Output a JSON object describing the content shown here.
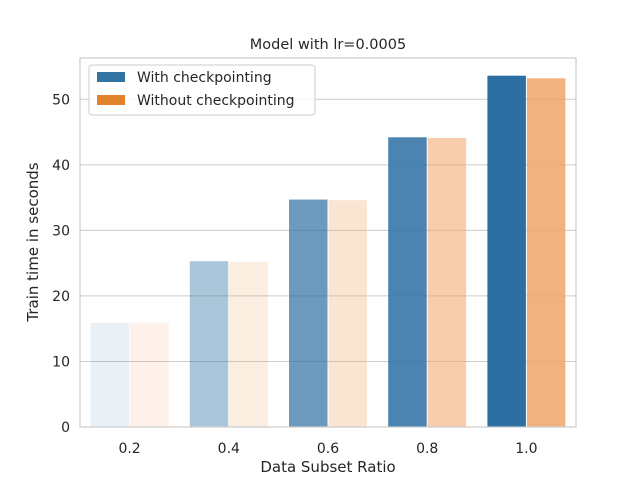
{
  "chart_data": {
    "type": "bar",
    "title": "Model with lr=0.0005",
    "xlabel": "Data Subset Ratio",
    "ylabel": "Train time in seconds",
    "categories": [
      "0.2",
      "0.4",
      "0.6",
      "0.8",
      "1.0"
    ],
    "ylim": [
      0,
      56.3
    ],
    "yticks": [
      0,
      10,
      20,
      30,
      40,
      50
    ],
    "grid": true,
    "legend_position": "top-left",
    "series": [
      {
        "name": "With checkpointing",
        "color": "#2c6fa3",
        "values": [
          15.9,
          25.3,
          34.7,
          44.2,
          53.6
        ],
        "opacities": [
          0.1,
          0.4,
          0.7,
          0.85,
          1.0
        ]
      },
      {
        "name": "Without checkpointing",
        "color": "#f0a46a",
        "values": [
          15.9,
          25.2,
          34.6,
          44.1,
          53.2
        ],
        "opacities": [
          0.15,
          0.2,
          0.3,
          0.55,
          0.85
        ]
      }
    ],
    "legend_colors": [
      "#3274a1",
      "#e1812c"
    ]
  }
}
